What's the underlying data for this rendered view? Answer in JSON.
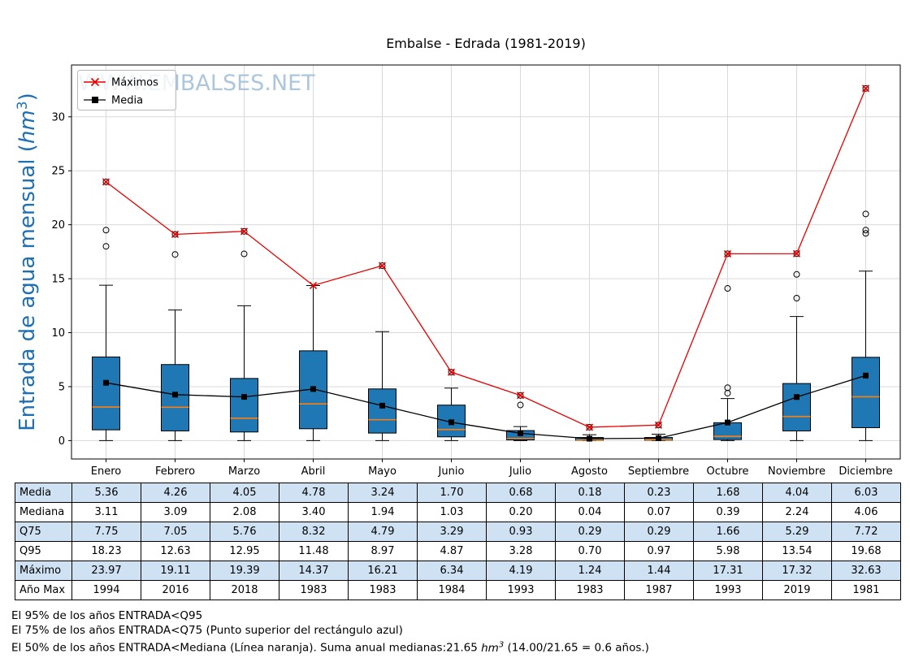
{
  "title": "Embalse - Edrada (1981-2019)",
  "watermark": "WWW.EMBALSES.NET",
  "ylabel": {
    "pre": "Entrada de agua mensual (",
    "math": "hm",
    "sup": "3",
    "post": ")"
  },
  "legend": [
    {
      "label": "Máximos",
      "color": "#e60000",
      "marker": "x"
    },
    {
      "label": "Media",
      "color": "#000000",
      "marker": "square"
    }
  ],
  "colors": {
    "box_fill": "#1f77b4",
    "median": "#ff7f0e",
    "max_line": "#e60000",
    "mean_line": "#000000",
    "grid": "#d9d9d9",
    "ylabel": "#1f6fb5",
    "watermark": "#a3c1d9",
    "table_row_alt": "#cfe2f3"
  },
  "chart_data": {
    "type": "boxplot",
    "categories": [
      "Enero",
      "Febrero",
      "Marzo",
      "Abril",
      "Mayo",
      "Junio",
      "Julio",
      "Agosto",
      "Septiembre",
      "Octubre",
      "Noviembre",
      "Diciembre"
    ],
    "ylim": [
      -1.7,
      34.8
    ],
    "yticks": [
      0,
      5,
      10,
      15,
      20,
      25,
      30
    ],
    "grid": true,
    "box": {
      "whisker_low": [
        0,
        0,
        0,
        0,
        0,
        0,
        0,
        0,
        0,
        0,
        0,
        0
      ],
      "q25": [
        1.0,
        0.9,
        0.8,
        1.1,
        0.7,
        0.35,
        0.07,
        0.02,
        0.03,
        0.1,
        0.9,
        1.2
      ],
      "median": [
        3.11,
        3.09,
        2.08,
        3.4,
        1.94,
        1.03,
        0.2,
        0.04,
        0.07,
        0.39,
        2.24,
        4.06
      ],
      "q75": [
        7.75,
        7.05,
        5.76,
        8.32,
        4.79,
        3.29,
        0.93,
        0.29,
        0.29,
        1.66,
        5.29,
        7.72
      ],
      "whisker_high": [
        14.4,
        12.1,
        12.5,
        14.37,
        10.1,
        4.87,
        1.3,
        0.55,
        0.6,
        3.9,
        11.5,
        15.7
      ],
      "outliers": [
        [
          18.0,
          19.5,
          23.97
        ],
        [
          17.25,
          19.11
        ],
        [
          17.3,
          19.39
        ],
        [],
        [
          16.21
        ],
        [
          6.34
        ],
        [
          3.3,
          4.19
        ],
        [
          1.24
        ],
        [
          1.44
        ],
        [
          4.4,
          4.9,
          14.1,
          17.31
        ],
        [
          13.2,
          15.4,
          17.32
        ],
        [
          19.2,
          19.5,
          21.0,
          32.63
        ]
      ]
    },
    "series": [
      {
        "name": "Máximos",
        "values": [
          23.97,
          19.11,
          19.39,
          14.37,
          16.21,
          6.34,
          4.19,
          1.24,
          1.44,
          17.31,
          17.32,
          32.63
        ]
      },
      {
        "name": "Media",
        "values": [
          5.36,
          4.26,
          4.05,
          4.78,
          3.24,
          1.7,
          0.68,
          0.18,
          0.23,
          1.68,
          4.04,
          6.03
        ]
      }
    ]
  },
  "table": {
    "columns": [
      "Enero",
      "Febrero",
      "Marzo",
      "Abril",
      "Mayo",
      "Junio",
      "Julio",
      "Agosto",
      "Septiembre",
      "Octubre",
      "Noviembre",
      "Diciembre"
    ],
    "rows": [
      {
        "label": "Media",
        "values": [
          "5.36",
          "4.26",
          "4.05",
          "4.78",
          "3.24",
          "1.70",
          "0.68",
          "0.18",
          "0.23",
          "1.68",
          "4.04",
          "6.03"
        ]
      },
      {
        "label": "Mediana",
        "values": [
          "3.11",
          "3.09",
          "2.08",
          "3.40",
          "1.94",
          "1.03",
          "0.20",
          "0.04",
          "0.07",
          "0.39",
          "2.24",
          "4.06"
        ]
      },
      {
        "label": "Q75",
        "values": [
          "7.75",
          "7.05",
          "5.76",
          "8.32",
          "4.79",
          "3.29",
          "0.93",
          "0.29",
          "0.29",
          "1.66",
          "5.29",
          "7.72"
        ]
      },
      {
        "label": "Q95",
        "values": [
          "18.23",
          "12.63",
          "12.95",
          "11.48",
          "8.97",
          "4.87",
          "3.28",
          "0.70",
          "0.97",
          "5.98",
          "13.54",
          "19.68"
        ]
      },
      {
        "label": "Máximo",
        "values": [
          "23.97",
          "19.11",
          "19.39",
          "14.37",
          "16.21",
          "6.34",
          "4.19",
          "1.24",
          "1.44",
          "17.31",
          "17.32",
          "32.63"
        ]
      },
      {
        "label": "Año Max",
        "values": [
          "1994",
          "2016",
          "2018",
          "1983",
          "1983",
          "1984",
          "1993",
          "1983",
          "1987",
          "1993",
          "2019",
          "1981"
        ]
      }
    ]
  },
  "footnotes": [
    "El 95% de los años ENTRADA<Q95",
    "El 75% de los años ENTRADA<Q75 (Punto superior del rectángulo azul)"
  ],
  "footnote3": {
    "pre": "El 50% de los años ENTRADA<Mediana (Línea naranja). Suma anual medianas:21.65 ",
    "math": "hm",
    "sup": "3",
    "post": " (14.00/21.65 = 0.6 años.)"
  }
}
